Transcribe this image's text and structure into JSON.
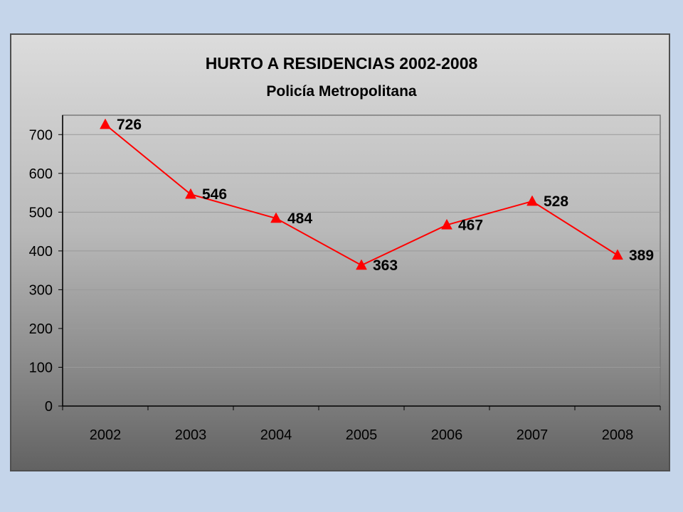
{
  "chart_data": {
    "type": "line",
    "title": "HURTO A RESIDENCIAS 2002-2008",
    "subtitle": "Policía Metropolitana",
    "categories": [
      "2002",
      "2003",
      "2004",
      "2005",
      "2006",
      "2007",
      "2008"
    ],
    "series": [
      {
        "values": [
          726,
          546,
          484,
          363,
          467,
          528,
          389
        ],
        "color": "#ff0000",
        "marker": "triangle"
      }
    ],
    "data_labels": [
      "726",
      "546",
      "484",
      "363",
      "467",
      "528",
      "389"
    ],
    "yticks": [
      "0",
      "100",
      "200",
      "300",
      "400",
      "500",
      "600",
      "700"
    ],
    "ylim": [
      0,
      750
    ],
    "grid": true,
    "legend": false,
    "xlabel": "",
    "ylabel": ""
  }
}
